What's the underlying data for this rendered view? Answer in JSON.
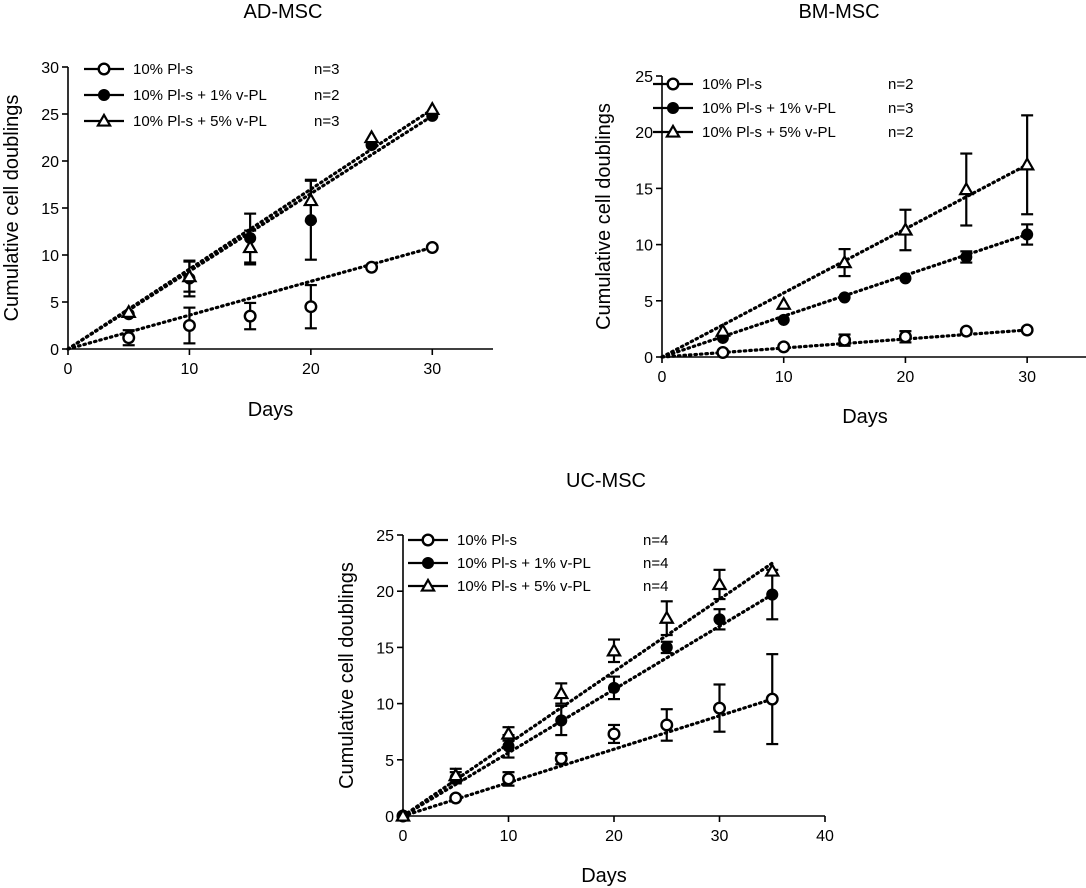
{
  "chart_data": [
    {
      "id": "ad",
      "type": "scatter",
      "title": "AD-MSC",
      "xlabel": "Days",
      "ylabel": "Cumulative cell doublings",
      "xlim": [
        0,
        35
      ],
      "ylim": [
        0,
        30
      ],
      "xticks": [
        0,
        10,
        20,
        30
      ],
      "yticks": [
        0,
        5,
        10,
        15,
        20,
        25,
        30
      ],
      "legend_position": "top-left",
      "series": [
        {
          "name": "10% Pl-s",
          "n_label": "n=3",
          "marker": "open-circle",
          "x": [
            5,
            10,
            15,
            20,
            25,
            30
          ],
          "y": [
            1.2,
            2.5,
            3.5,
            4.5,
            8.7,
            10.8
          ],
          "err": [
            0.8,
            1.9,
            1.4,
            2.3,
            0.3,
            0.3
          ],
          "fit": [
            [
              0,
              0
            ],
            [
              30,
              10.8
            ]
          ]
        },
        {
          "name": "10% Pl-s + 1% v-PL",
          "n_label": "n=2",
          "marker": "filled-circle",
          "x": [
            5,
            10,
            15,
            20,
            25,
            30
          ],
          "y": [
            3.7,
            7.5,
            11.8,
            13.7,
            21.7,
            24.8
          ],
          "err": [
            0.3,
            1.9,
            2.6,
            4.2,
            0.3,
            0.3
          ],
          "fit": [
            [
              0,
              0
            ],
            [
              30,
              24.8
            ]
          ]
        },
        {
          "name": "10% Pl-s + 5% v-PL",
          "n_label": "n=3",
          "marker": "open-triangle",
          "x": [
            5,
            10,
            15,
            20,
            25,
            30
          ],
          "y": [
            3.9,
            7.7,
            10.8,
            15.8,
            22.5,
            25.5
          ],
          "err": [
            0.3,
            1.6,
            1.8,
            2.2,
            0.3,
            0.3
          ],
          "fit": [
            [
              0,
              0
            ],
            [
              30,
              25.5
            ]
          ]
        }
      ]
    },
    {
      "id": "bm",
      "type": "scatter",
      "title": "BM-MSC",
      "xlabel": "Days",
      "ylabel": "Cumulative cell doublings",
      "xlim": [
        0,
        35
      ],
      "ylim": [
        0,
        25
      ],
      "xticks": [
        0,
        10,
        20,
        30
      ],
      "yticks": [
        0,
        5,
        10,
        15,
        20,
        25
      ],
      "legend_position": "top-left",
      "series": [
        {
          "name": "10% Pl-s",
          "n_label": "n=2",
          "marker": "open-circle",
          "x": [
            5,
            10,
            15,
            20,
            25,
            30
          ],
          "y": [
            0.4,
            0.9,
            1.5,
            1.8,
            2.3,
            2.4
          ],
          "err": [
            0.3,
            0.3,
            0.5,
            0.5,
            0.3,
            0.3
          ],
          "fit": [
            [
              0,
              0
            ],
            [
              30,
              2.4
            ]
          ]
        },
        {
          "name": "10% Pl-s + 1% v-PL",
          "n_label": "n=3",
          "marker": "filled-circle",
          "x": [
            5,
            10,
            15,
            20,
            25,
            30
          ],
          "y": [
            1.7,
            3.3,
            5.3,
            7.0,
            8.9,
            10.9
          ],
          "err": [
            0.3,
            0.3,
            0.3,
            0.3,
            0.5,
            0.9
          ],
          "fit": [
            [
              0,
              0
            ],
            [
              30,
              10.9
            ]
          ]
        },
        {
          "name": "10% Pl-s + 5% v-PL",
          "n_label": "n=2",
          "marker": "open-triangle",
          "x": [
            5,
            10,
            15,
            20,
            25,
            30
          ],
          "y": [
            2.3,
            4.7,
            8.4,
            11.3,
            14.9,
            17.1
          ],
          "err": [
            0.3,
            0.3,
            1.2,
            1.8,
            3.2,
            4.4
          ],
          "fit": [
            [
              0,
              0
            ],
            [
              30,
              17.1
            ]
          ]
        }
      ]
    },
    {
      "id": "uc",
      "type": "scatter",
      "title": "UC-MSC",
      "xlabel": "Days",
      "ylabel": "Cumulative cell doublings",
      "xlim": [
        0,
        40
      ],
      "ylim": [
        0,
        25
      ],
      "xticks": [
        0,
        10,
        20,
        30,
        40
      ],
      "yticks": [
        0,
        5,
        10,
        15,
        20,
        25
      ],
      "legend_position": "top-left",
      "series": [
        {
          "name": "10% Pl-s",
          "n_label": "n=4",
          "marker": "open-circle",
          "x": [
            0,
            5,
            10,
            15,
            20,
            25,
            30,
            35
          ],
          "y": [
            0,
            1.6,
            3.3,
            5.1,
            7.3,
            8.1,
            9.6,
            10.4
          ],
          "err": [
            0,
            0.3,
            0.6,
            0.5,
            0.8,
            1.4,
            2.1,
            4.0
          ],
          "fit": [
            [
              0,
              0
            ],
            [
              35,
              10.4
            ]
          ]
        },
        {
          "name": "10% Pl-s + 1% v-PL",
          "n_label": "n=4",
          "marker": "filled-circle",
          "x": [
            0,
            5,
            10,
            15,
            20,
            25,
            30,
            35
          ],
          "y": [
            0,
            3.4,
            6.2,
            8.5,
            11.4,
            15.0,
            17.5,
            19.7
          ],
          "err": [
            0,
            0.5,
            1.0,
            1.3,
            1.0,
            0.5,
            0.9,
            2.2
          ],
          "fit": [
            [
              0,
              0
            ],
            [
              35,
              19.7
            ]
          ]
        },
        {
          "name": "10% Pl-s + 5% v-PL",
          "n_label": "n=4",
          "marker": "open-triangle",
          "x": [
            0,
            5,
            10,
            15,
            20,
            25,
            30,
            35
          ],
          "y": [
            0,
            3.6,
            7.3,
            10.9,
            14.7,
            17.6,
            20.6,
            21.8
          ],
          "err": [
            0,
            0.6,
            0.6,
            0.9,
            1.0,
            1.5,
            1.3,
            0.3
          ],
          "fit": [
            [
              0,
              0
            ],
            [
              35,
              22.5
            ]
          ]
        }
      ]
    }
  ]
}
